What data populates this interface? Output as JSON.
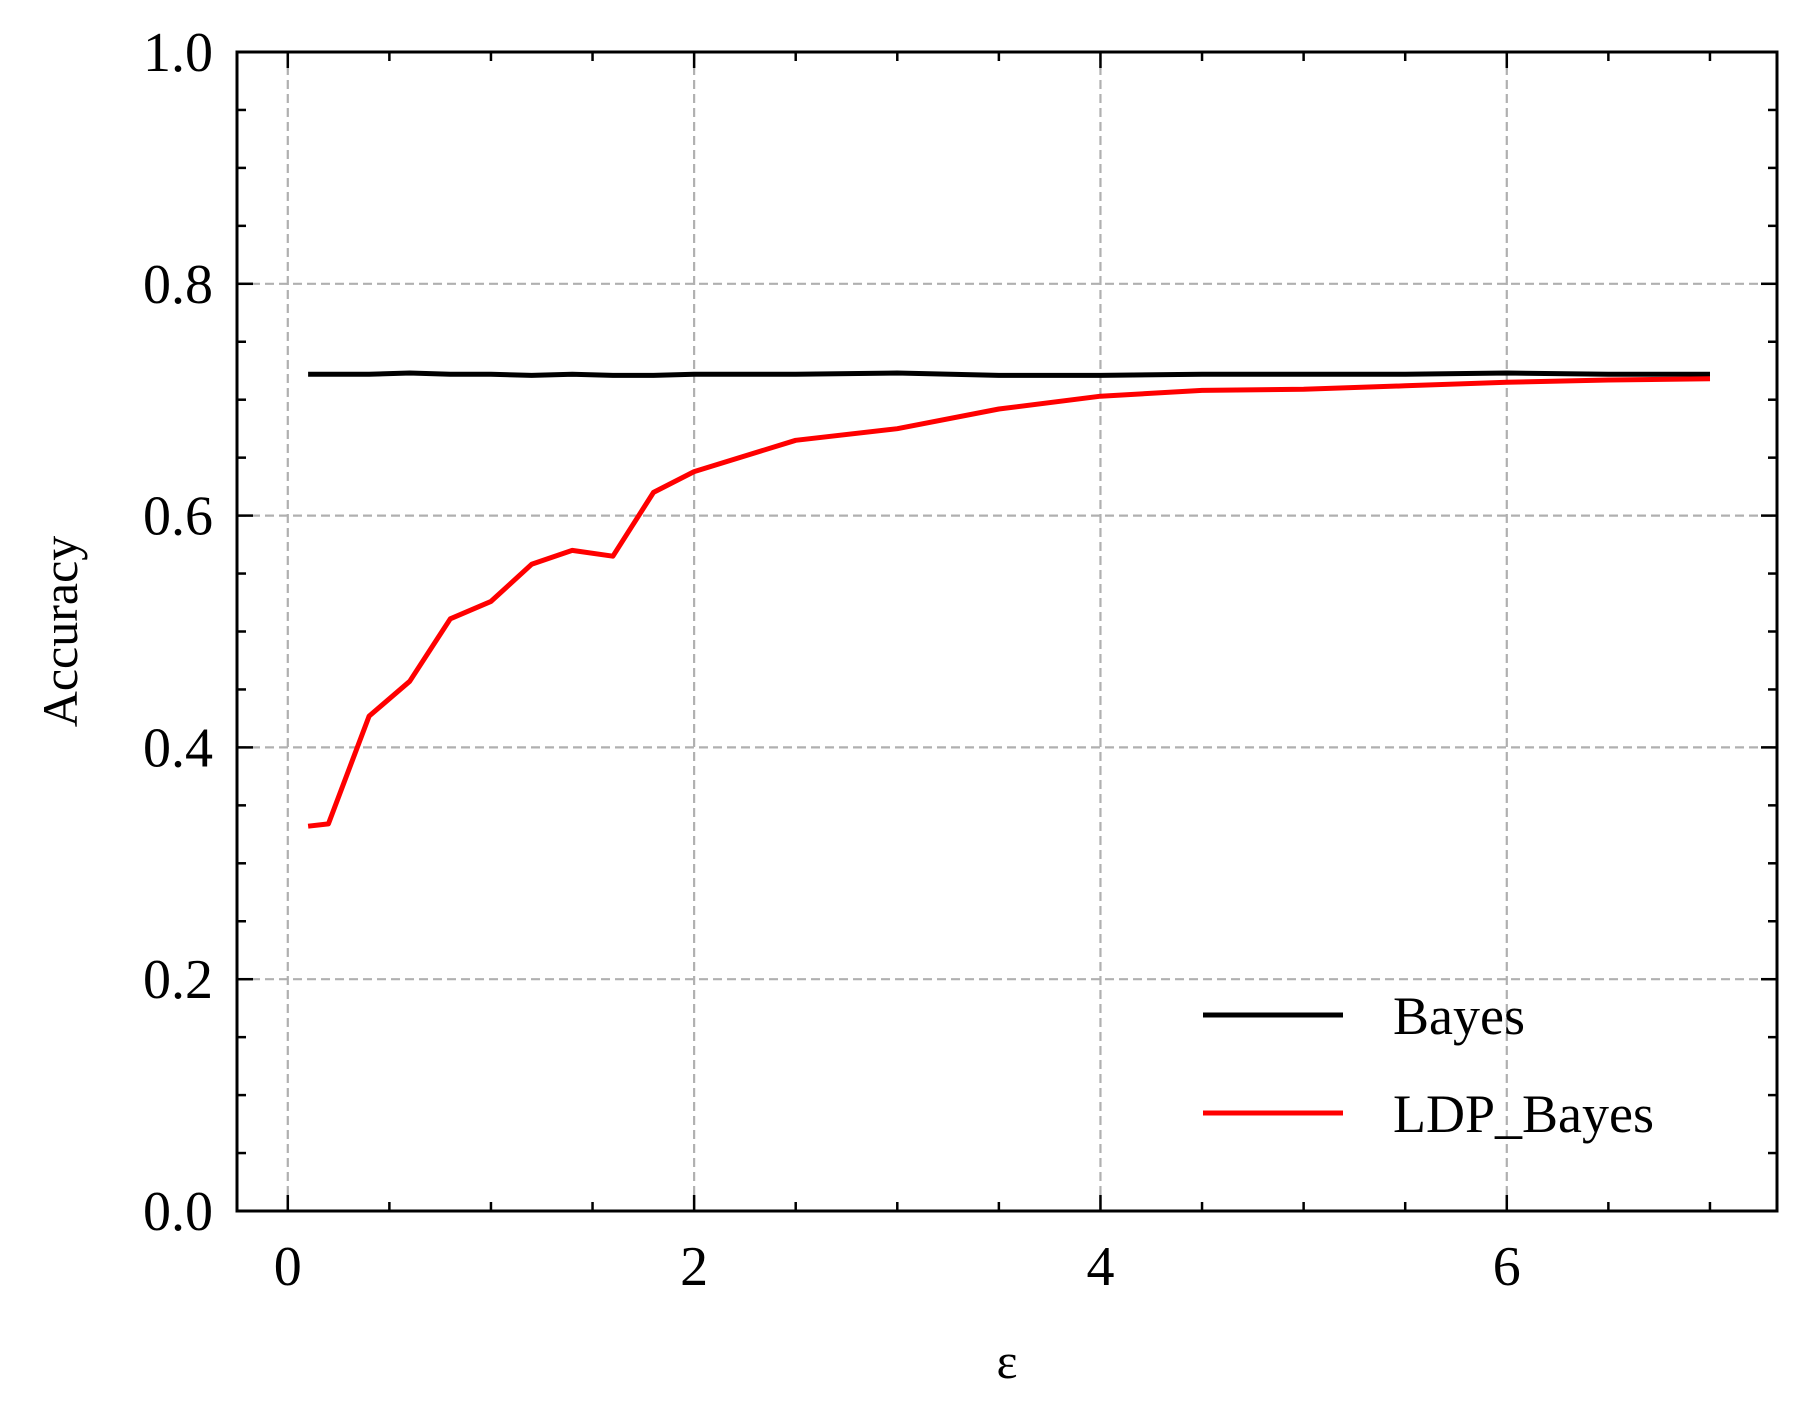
{
  "chart_data": {
    "type": "line",
    "title": "",
    "xlabel": "ε",
    "ylabel": "Accuracy",
    "xlim": [
      -0.25,
      7.33
    ],
    "ylim": [
      0.0,
      1.0
    ],
    "xticks": [
      0,
      2,
      4,
      6
    ],
    "xtick_labels": [
      "0",
      "2",
      "4",
      "6"
    ],
    "yticks": [
      0.0,
      0.2,
      0.4,
      0.6,
      0.8,
      1.0
    ],
    "ytick_labels": [
      "0.0",
      "0.2",
      "0.4",
      "0.6",
      "0.8",
      "1.0"
    ],
    "x_minor_step": 0.5,
    "y_minor_step": 0.05,
    "grid": true,
    "legend_position": "lower-right",
    "series": [
      {
        "name": "Bayes",
        "color": "#000000",
        "x": [
          0.1,
          0.2,
          0.4,
          0.6,
          0.8,
          1.0,
          1.2,
          1.4,
          1.6,
          1.8,
          2.0,
          2.5,
          3.0,
          3.5,
          4.0,
          4.5,
          5.0,
          5.5,
          6.0,
          6.5,
          7.0
        ],
        "y": [
          0.722,
          0.722,
          0.722,
          0.723,
          0.722,
          0.722,
          0.721,
          0.722,
          0.721,
          0.721,
          0.722,
          0.722,
          0.723,
          0.721,
          0.721,
          0.722,
          0.722,
          0.722,
          0.723,
          0.722,
          0.722
        ]
      },
      {
        "name": "LDP_Bayes",
        "color": "#ff0000",
        "x": [
          0.1,
          0.2,
          0.4,
          0.6,
          0.8,
          1.0,
          1.2,
          1.4,
          1.6,
          1.8,
          2.0,
          2.5,
          3.0,
          3.5,
          4.0,
          4.5,
          5.0,
          5.5,
          6.0,
          6.5,
          7.0
        ],
        "y": [
          0.332,
          0.334,
          0.427,
          0.457,
          0.511,
          0.526,
          0.558,
          0.57,
          0.565,
          0.62,
          0.638,
          0.665,
          0.675,
          0.692,
          0.703,
          0.708,
          0.709,
          0.712,
          0.715,
          0.717,
          0.718
        ]
      }
    ]
  }
}
